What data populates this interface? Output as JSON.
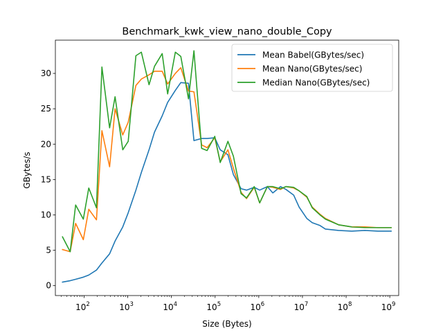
{
  "chart_data": {
    "type": "line",
    "title": "Benchmark_kwk_view_nano_double_Copy",
    "xlabel": "Size (Bytes)",
    "ylabel": "GBytes/s",
    "xscale": "log",
    "xlim": [
      22,
      1600000000.0
    ],
    "ylim": [
      -1.4,
      34.7
    ],
    "xticks": [
      {
        "value": 100,
        "label": "10",
        "exp": "2"
      },
      {
        "value": 1000,
        "label": "10",
        "exp": "3"
      },
      {
        "value": 10000,
        "label": "10",
        "exp": "4"
      },
      {
        "value": 100000,
        "label": "10",
        "exp": "5"
      },
      {
        "value": 1000000,
        "label": "10",
        "exp": "6"
      },
      {
        "value": 10000000,
        "label": "10",
        "exp": "7"
      },
      {
        "value": 100000000,
        "label": "10",
        "exp": "8"
      },
      {
        "value": 1000000000,
        "label": "10",
        "exp": "9"
      }
    ],
    "yticks": [
      0,
      5,
      10,
      15,
      20,
      25,
      30
    ],
    "grid": false,
    "legend_position": "top-right",
    "series": [
      {
        "name": "Mean Babel(GBytes/sec)",
        "color": "#1f77b4",
        "x": [
          32,
          48,
          64,
          96,
          128,
          192,
          256,
          384,
          512,
          768,
          1024,
          1536,
          2048,
          3072,
          4096,
          6144,
          8192,
          12288,
          16384,
          24576,
          32768,
          49152,
          65536,
          98304,
          131072,
          196608,
          262144,
          393216,
          524288,
          786432,
          1048576,
          1572864,
          2097152,
          3145728,
          4194304,
          6291456,
          8388608,
          12582912,
          16777216,
          25165824,
          33554432,
          67108864,
          134217728,
          268435456,
          536870912,
          1073741824
        ],
        "y": [
          0.5,
          0.7,
          0.9,
          1.2,
          1.5,
          2.2,
          3.2,
          4.5,
          6.3,
          8.3,
          10.3,
          13.5,
          16.0,
          19.2,
          21.7,
          24.0,
          25.9,
          27.6,
          28.7,
          28.6,
          20.5,
          20.8,
          20.8,
          20.9,
          19.2,
          18.5,
          15.7,
          13.7,
          13.5,
          13.9,
          13.5,
          14.0,
          13.1,
          14.0,
          13.6,
          12.8,
          11.1,
          9.5,
          8.9,
          8.5,
          8.0,
          7.8,
          7.7,
          7.8,
          7.7,
          7.7
        ]
      },
      {
        "name": "Mean Nano(GBytes/sec)",
        "color": "#ff7f0e",
        "x": [
          32,
          48,
          64,
          96,
          128,
          192,
          256,
          384,
          512,
          768,
          1024,
          1536,
          2048,
          3072,
          4096,
          6144,
          8192,
          12288,
          16384,
          24576,
          32768,
          49152,
          65536,
          98304,
          131072,
          196608,
          262144,
          393216,
          524288,
          786432,
          1048576,
          1572864,
          2097152,
          3145728,
          4194304,
          6291456,
          8388608,
          12582912,
          16777216,
          25165824,
          33554432,
          67108864,
          134217728,
          268435456,
          536870912,
          1073741824
        ],
        "y": [
          5.1,
          4.8,
          8.8,
          6.5,
          10.8,
          9.3,
          21.9,
          16.8,
          25.0,
          21.3,
          23.1,
          28.3,
          29.2,
          29.8,
          30.3,
          30.3,
          28.5,
          30.0,
          30.8,
          27.5,
          27.4,
          19.9,
          19.5,
          20.9,
          17.5,
          19.2,
          16.6,
          13.2,
          12.3,
          13.9,
          11.7,
          14.0,
          13.9,
          13.6,
          14.0,
          13.8,
          13.4,
          12.5,
          11.1,
          10.1,
          9.5,
          8.6,
          8.3,
          8.3,
          8.2,
          8.2
        ]
      },
      {
        "name": "Median Nano(GBytes/sec)",
        "color": "#2ca02c",
        "x": [
          32,
          48,
          64,
          96,
          128,
          192,
          256,
          384,
          512,
          768,
          1024,
          1536,
          2048,
          3072,
          4096,
          6144,
          8192,
          12288,
          16384,
          24576,
          32768,
          49152,
          65536,
          98304,
          131072,
          196608,
          262144,
          393216,
          524288,
          786432,
          1048576,
          1572864,
          2097152,
          3145728,
          4194304,
          6291456,
          8388608,
          12582912,
          16777216,
          25165824,
          33554432,
          67108864,
          134217728,
          268435456,
          536870912,
          1073741824
        ],
        "y": [
          6.9,
          4.8,
          11.4,
          9.4,
          13.8,
          11.0,
          30.9,
          22.3,
          26.7,
          19.2,
          20.4,
          32.5,
          33.0,
          28.4,
          31.0,
          32.8,
          27.1,
          33.0,
          32.4,
          26.4,
          33.2,
          19.4,
          19.1,
          21.1,
          17.4,
          20.4,
          18.3,
          13.0,
          12.4,
          14.0,
          11.7,
          14.0,
          14.0,
          13.7,
          14.0,
          13.9,
          13.4,
          12.6,
          11.0,
          10.0,
          9.4,
          8.6,
          8.3,
          8.2,
          8.2,
          8.2
        ]
      }
    ]
  }
}
